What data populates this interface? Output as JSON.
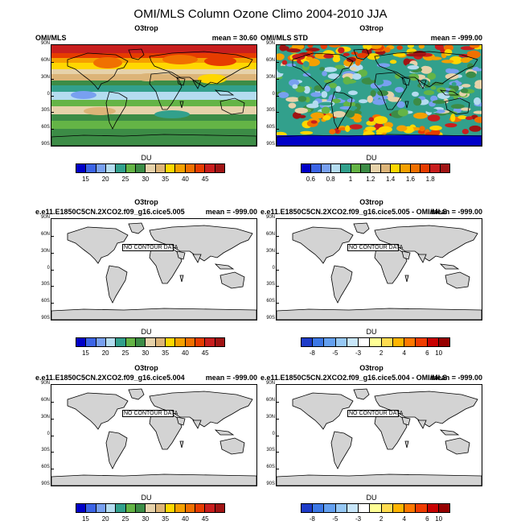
{
  "title": "OMI/MLS Column Ozone Climo 2004-2010 JJA",
  "lat_labels": [
    "90N",
    "60N",
    "30N",
    "0",
    "30S",
    "60S",
    "90S"
  ],
  "units": "DU",
  "nodata_text": "NO CONTOUR DATA",
  "colors": {
    "abs": [
      "#0000c8",
      "#3c64e6",
      "#78a0f0",
      "#b4dcf0",
      "#32a08c",
      "#64b446",
      "#3c8c46",
      "#e6d2aa",
      "#dcb478",
      "#ffd700",
      "#f5a000",
      "#f07000",
      "#e63c00",
      "#c81e1e",
      "#a01414"
    ],
    "std": [
      "#0000c8",
      "#3c64e6",
      "#78a0f0",
      "#b4dcf0",
      "#32a08c",
      "#64b446",
      "#3c8c46",
      "#e6d2aa",
      "#dcb478",
      "#ffd700",
      "#f5a000",
      "#f07000",
      "#e63c00",
      "#c81e1e",
      "#a01414"
    ],
    "diff": [
      "#1e3cc8",
      "#3c78e6",
      "#64a0f0",
      "#96c8f5",
      "#c8e6fa",
      "#ffffff",
      "#ffff96",
      "#ffdc50",
      "#ffb400",
      "#ff7800",
      "#f03c00",
      "#c80000",
      "#960000"
    ]
  },
  "panels": [
    {
      "id": "p1",
      "title": "O3trop",
      "left": "OMI/MLS",
      "right": "mean =  30.60",
      "type": "abs",
      "cbar_labels": [
        "15",
        "20",
        "25",
        "30",
        "35",
        "40",
        "45"
      ]
    },
    {
      "id": "p2",
      "title": "O3trop",
      "left": "OMI/MLS STD",
      "right": "mean = -999.00",
      "type": "std",
      "cbar_labels": [
        "0.6",
        "0.8",
        "1",
        "1.2",
        "1.4",
        "1.6",
        "1.8"
      ]
    },
    {
      "id": "p3",
      "title": "O3trop",
      "left": "e.e11.E1850C5CN.2XCO2.f09_g16.cice5.005",
      "right": "mean = -999.00",
      "type": "empty-abs",
      "cbar_labels": [
        "15",
        "20",
        "25",
        "30",
        "35",
        "40",
        "45"
      ]
    },
    {
      "id": "p4",
      "title": "O3trop",
      "left": "e.e11.E1850C5CN.2XCO2.f09_g16.cice5.005 - OMI/MLS",
      "right": "mean = -999.00",
      "type": "empty-diff",
      "cbar_labels": [
        "-8",
        "-5",
        "-3",
        "2",
        "4",
        "6",
        "10"
      ]
    },
    {
      "id": "p5",
      "title": "O3trop",
      "left": "e.e11.E1850C5CN.2XCO2.f09_g16.cice5.004",
      "right": "mean = -999.00",
      "type": "empty-abs",
      "cbar_labels": [
        "15",
        "20",
        "25",
        "30",
        "35",
        "40",
        "45"
      ]
    },
    {
      "id": "p6",
      "title": "O3trop",
      "left": "e.e11.E1850C5CN.2XCO2.f09_g16.cice5.004 - OMI/MLS",
      "right": "mean = -999.00",
      "type": "empty-diff",
      "cbar_labels": [
        "-8",
        "-5",
        "-3",
        "2",
        "4",
        "6",
        "10"
      ]
    }
  ]
}
